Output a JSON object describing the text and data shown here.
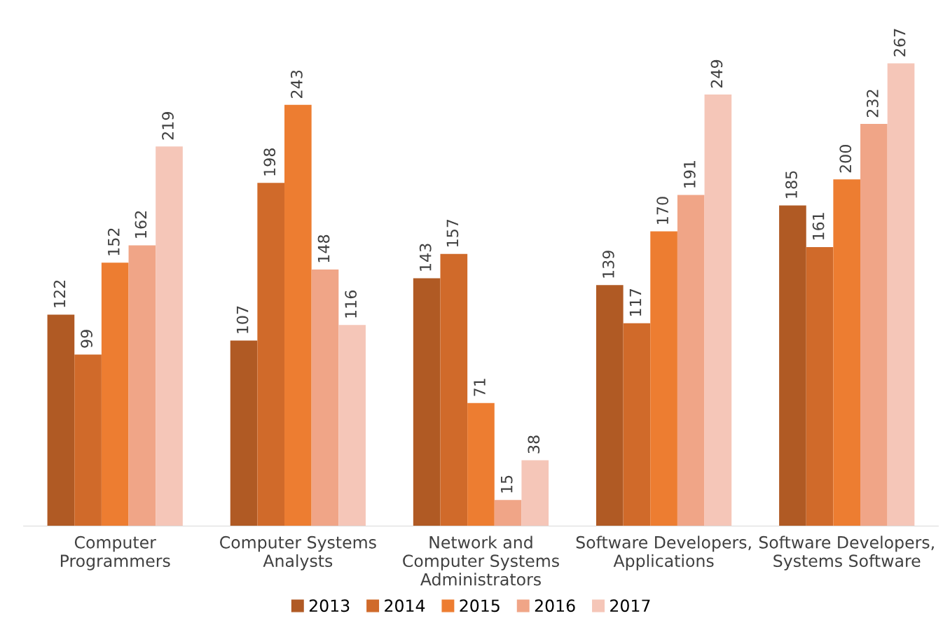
{
  "chart_data": {
    "type": "bar",
    "categories": [
      "Computer\nProgrammers",
      "Computer Systems\nAnalysts",
      "Network and\nComputer Systems\nAdministrators",
      "Software Developers,\nApplications",
      "Software Developers,\nSystems Software"
    ],
    "series": [
      {
        "name": "2013",
        "color": "#b05a24",
        "values": [
          122,
          107,
          143,
          139,
          185
        ]
      },
      {
        "name": "2014",
        "color": "#d06a2a",
        "values": [
          99,
          198,
          157,
          117,
          161
        ]
      },
      {
        "name": "2015",
        "color": "#ed7d31",
        "values": [
          152,
          243,
          71,
          170,
          200
        ]
      },
      {
        "name": "2016",
        "color": "#f0a587",
        "values": [
          162,
          148,
          15,
          191,
          232
        ]
      },
      {
        "name": "2017",
        "color": "#f5c6b8",
        "values": [
          219,
          116,
          38,
          249,
          267
        ]
      }
    ],
    "data_labels": true,
    "legend": "bottom",
    "grid": false,
    "tick_labels": "x"
  }
}
